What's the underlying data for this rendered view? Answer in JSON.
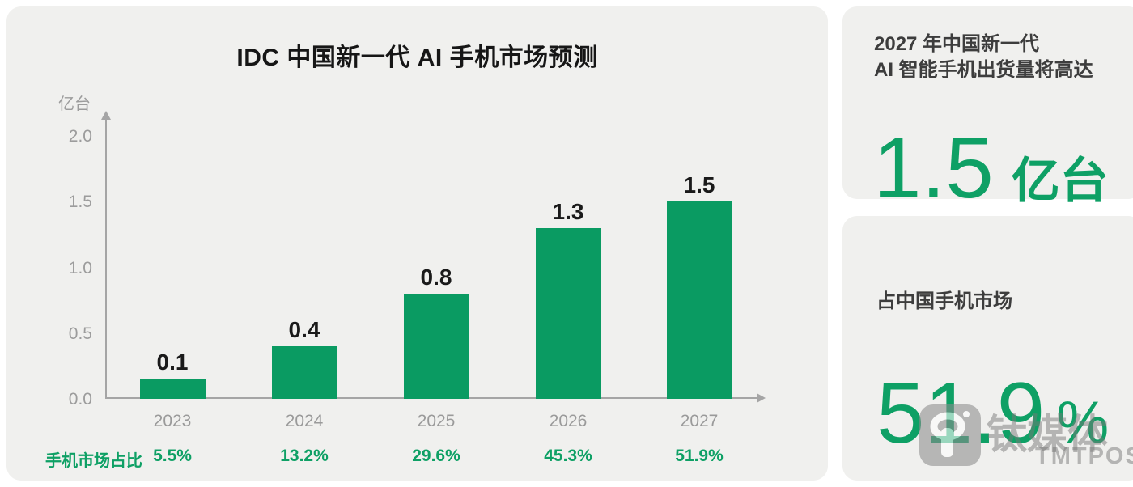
{
  "page": {
    "background": "#ffffff",
    "card_background": "#f0f0ee",
    "accent_green": "#0a9b62",
    "text_green": "#0ea065"
  },
  "chart_data": {
    "type": "bar",
    "title": "IDC 中国新一代 AI 手机市场预测",
    "ylabel": "亿台",
    "categories": [
      "2023",
      "2024",
      "2025",
      "2026",
      "2027"
    ],
    "values": [
      0.1,
      0.4,
      0.8,
      1.3,
      1.5
    ],
    "value_labels": [
      "0.1",
      "0.4",
      "0.8",
      "1.3",
      "1.5"
    ],
    "yticks": [
      "0.0",
      "0.5",
      "1.0",
      "1.5",
      "2.0"
    ],
    "ylim": [
      0,
      2.2
    ],
    "grid": false,
    "legend": false,
    "bar_color": "#0a9b62",
    "share_row": {
      "label": "手机市场占比",
      "values": [
        "5.5%",
        "13.2%",
        "29.6%",
        "45.3%",
        "51.9%"
      ]
    }
  },
  "stat_cards": [
    {
      "heading_line1": "2027 年中国新一代",
      "heading_line2": "AI 智能手机出货量将高达",
      "big_value": "1.5",
      "big_unit": "亿台"
    },
    {
      "heading_line1": "占中国手机市场",
      "big_value": "51.9",
      "big_unit": "%"
    }
  ],
  "watermark": {
    "cn": "钛媒体",
    "en": "TMTPOST"
  }
}
